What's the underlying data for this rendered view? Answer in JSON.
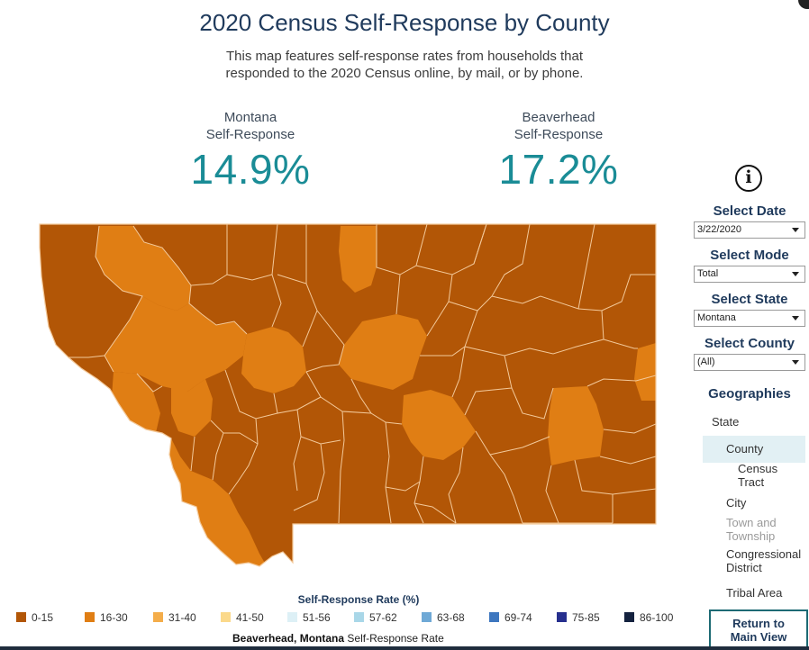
{
  "title": "2020 Census Self-Response by County",
  "subtitle_line1": "This map features self-response rates from households that",
  "subtitle_line2": "responded to the 2020 Census online, by mail, or by phone.",
  "kpis": {
    "state": {
      "name": "Montana",
      "label": "Self-Response",
      "value": "14.9%"
    },
    "county": {
      "name": "Beaverhead",
      "label": "Self-Response",
      "value": "17.2%"
    }
  },
  "controls": {
    "date": {
      "label": "Select Date",
      "value": "3/22/2020"
    },
    "mode": {
      "label": "Select Mode",
      "value": "Total"
    },
    "state": {
      "label": "Select State",
      "value": "Montana"
    },
    "county": {
      "label": "Select County",
      "value": "(All)"
    }
  },
  "geographies": {
    "title": "Geographies",
    "state": "State",
    "county": "County",
    "census_tract_1": "Census",
    "census_tract_2": "Tract",
    "city": "City",
    "town_1": "Town and",
    "town_2": "Township",
    "congressional_1": "Congressional",
    "congressional_2": "District",
    "tribal": "Tribal Area",
    "selected": "County"
  },
  "return_button_1": "Return to",
  "return_button_2": "Main View",
  "legend": {
    "title": "Self-Response Rate (%)",
    "items": [
      {
        "label": "0-15",
        "color": "#b25606"
      },
      {
        "label": "16-30",
        "color": "#e07e14"
      },
      {
        "label": "31-40",
        "color": "#f4ad4a"
      },
      {
        "label": "41-50",
        "color": "#fbd98b"
      },
      {
        "label": "51-56",
        "color": "#ddf0f6"
      },
      {
        "label": "57-62",
        "color": "#a9d7e8"
      },
      {
        "label": "63-68",
        "color": "#6fa9d6"
      },
      {
        "label": "69-74",
        "color": "#3e77bf"
      },
      {
        "label": "75-85",
        "color": "#262f8e"
      },
      {
        "label": "86-100",
        "color": "#14223f"
      }
    ]
  },
  "footnote": {
    "bold": "Beaverhead, Montana",
    "text": "Self-Response Rate"
  },
  "colors": {
    "dark_county": "#b25606",
    "light_county": "#e07e14",
    "border": "#f3c99a"
  }
}
